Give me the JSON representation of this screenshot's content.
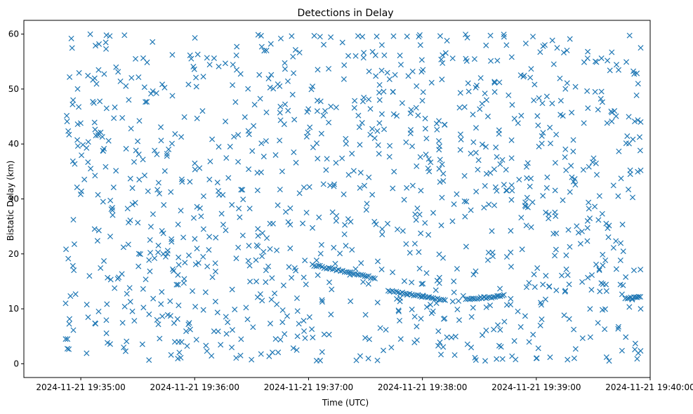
{
  "chart_data": {
    "type": "scatter",
    "title": "Detections in Delay",
    "xlabel": "Time (UTC)",
    "ylabel": "Bistatic Delay (km)",
    "marker": "x",
    "color": "#1f77b4",
    "grid": false,
    "x_axis_type": "datetime",
    "xlim": [
      "2024-11-21 19:34:30",
      "2024-11-21 19:40:00"
    ],
    "ylim": [
      -2.5,
      62.5
    ],
    "x_ticks": [
      "2024-11-21 19:35:00",
      "2024-11-21 19:36:00",
      "2024-11-21 19:37:00",
      "2024-11-21 19:38:00",
      "2024-11-21 19:39:00",
      "2024-11-21 19:40:00"
    ],
    "y_ticks": [
      0,
      10,
      20,
      30,
      40,
      50,
      60
    ],
    "tracks": [
      {
        "x_start": "2024-11-21 19:37:02",
        "x_end": "2024-11-21 19:37:35",
        "y_start": 18.0,
        "y_end": 15.6,
        "points": 32
      },
      {
        "x_start": "2024-11-21 19:37:42",
        "x_end": "2024-11-21 19:38:12",
        "y_start": 13.3,
        "y_end": 11.6,
        "points": 30
      },
      {
        "x_start": "2024-11-21 19:38:23",
        "x_end": "2024-11-21 19:38:43",
        "y_start": 11.7,
        "y_end": 12.4,
        "points": 22
      },
      {
        "x_start": "2024-11-21 19:39:47",
        "x_end": "2024-11-21 19:39:55",
        "y_start": 11.8,
        "y_end": 12.2,
        "points": 10
      }
    ],
    "clutter": {
      "x_start": "2024-11-21 19:34:52",
      "x_end": "2024-11-21 19:39:55",
      "y_range": [
        0.5,
        60
      ],
      "count": 1100,
      "note_points_sample": [
        [
          "2024-11-21 19:34:52",
          4.5
        ],
        [
          "2024-11-21 19:34:53",
          4.5
        ],
        [
          "2024-11-21 19:34:52",
          11.0
        ],
        [
          "2024-11-21 19:34:55",
          59.2
        ],
        [
          "2024-11-21 19:35:23",
          59.8
        ],
        [
          "2024-11-21 19:36:35",
          59.7
        ],
        [
          "2024-11-21 19:37:03",
          59.7
        ],
        [
          "2024-11-21 19:38:43",
          59.5
        ],
        [
          "2024-11-21 19:39:00",
          1.0
        ],
        [
          "2024-11-21 19:39:20",
          1.0
        ],
        [
          "2024-11-21 19:39:37",
          1.2
        ],
        [
          "2024-11-21 19:39:55",
          35.2
        ],
        [
          "2024-11-21 19:39:55",
          44.0
        ],
        [
          "2024-11-21 19:39:55",
          57.5
        ],
        [
          "2024-11-21 19:39:55",
          10.0
        ]
      ]
    }
  }
}
